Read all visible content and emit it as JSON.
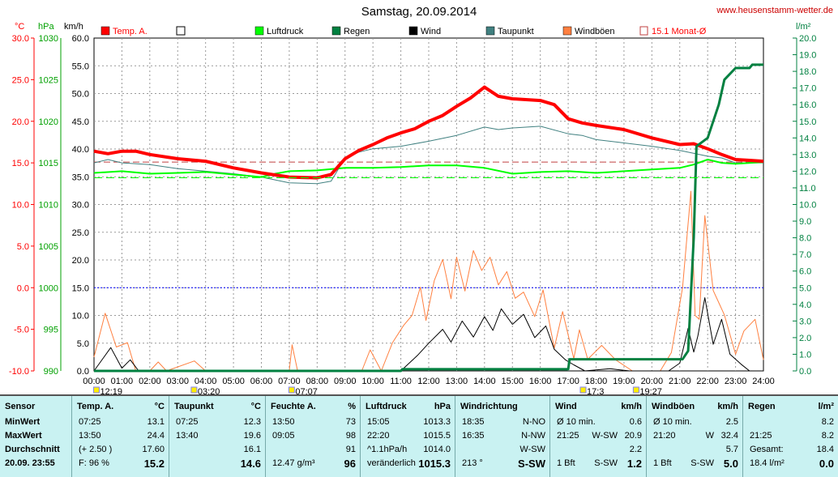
{
  "title": "Samstag, 20.09.2014",
  "site": "www.heusenstamm-wetter.de",
  "units": {
    "temp": "°C",
    "press": "hPa",
    "speed": "km/h",
    "rain": "l/m²"
  },
  "legend": [
    {
      "label": "Temp. A.",
      "color": "#ff0000",
      "style": "fill"
    },
    {
      "label": "",
      "color": "#ffffff",
      "style": "box"
    },
    {
      "label": "Luftdruck",
      "color": "#00ff00",
      "style": "fill"
    },
    {
      "label": "Regen",
      "color": "#008040",
      "style": "fill"
    },
    {
      "label": "Wind",
      "color": "#000000",
      "style": "fill"
    },
    {
      "label": "Taupunkt",
      "color": "#408080",
      "style": "fill"
    },
    {
      "label": "Windböen",
      "color": "#ff8040",
      "style": "fill"
    },
    {
      "label": "15.1 Monat-Ø",
      "color": "#c04040",
      "style": "open"
    }
  ],
  "chart_data": {
    "type": "line",
    "x_ticks": [
      "00:00",
      "01:00",
      "02:00",
      "03:00",
      "04:00",
      "05:00",
      "06:00",
      "07:00",
      "08:00",
      "09:00",
      "10:00",
      "11:00",
      "12:00",
      "13:00",
      "14:00",
      "15:00",
      "16:00",
      "17:00",
      "18:00",
      "19:00",
      "20:00",
      "21:00",
      "22:00",
      "23:00",
      "24:00"
    ],
    "temp_ticks": [
      "30.0",
      "25.0",
      "20.0",
      "15.0",
      "10.0",
      "5.0",
      "0.0",
      "-5.0",
      "-10.0"
    ],
    "press_ticks": [
      "1030",
      "1025",
      "1020",
      "1015",
      "1010",
      "1005",
      "1000",
      "995",
      "990"
    ],
    "speed_ticks": [
      "60.0",
      "55.0",
      "50.0",
      "45.0",
      "40.0",
      "35.0",
      "30.0",
      "25.0",
      "20.0",
      "15.0",
      "10.0",
      "5.0",
      "0.0"
    ],
    "rain_ticks": [
      "20.0",
      "19.0",
      "18.0",
      "17.0",
      "16.0",
      "15.0",
      "14.0",
      "13.0",
      "12.0",
      "11.0",
      "10.0",
      "9.0",
      "8.0",
      "7.0",
      "6.0",
      "5.0",
      "4.0",
      "3.0",
      "2.0",
      "1.0",
      "0.0"
    ],
    "ranges": {
      "temp": [
        -10,
        30
      ],
      "pressure": [
        990,
        1030
      ],
      "speed": [
        0,
        60
      ],
      "rain": [
        0,
        20
      ],
      "hours": [
        0,
        24
      ]
    },
    "sun_markers": [
      {
        "label": "12:19",
        "hour": 0.1
      },
      {
        "label": "03:20",
        "hour": 3.6
      },
      {
        "label": "07:07",
        "hour": 7.1
      },
      {
        "label": "17:3",
        "hour": 17.55
      },
      {
        "label": "19:27",
        "hour": 19.45
      }
    ],
    "month_avg_temp": 15.1,
    "series": [
      {
        "name": "Temp. A.",
        "color": "#ff0000",
        "width": 4,
        "axis": "temp",
        "points": [
          [
            0,
            16.4
          ],
          [
            0.5,
            16.1
          ],
          [
            1,
            16.4
          ],
          [
            1.5,
            16.4
          ],
          [
            2,
            16.0
          ],
          [
            3,
            15.5
          ],
          [
            4,
            15.2
          ],
          [
            5,
            14.4
          ],
          [
            6,
            13.8
          ],
          [
            7,
            13.3
          ],
          [
            8,
            13.2
          ],
          [
            8.5,
            13.6
          ],
          [
            9,
            15.5
          ],
          [
            9.5,
            16.5
          ],
          [
            10,
            17.2
          ],
          [
            10.5,
            18.0
          ],
          [
            11,
            18.6
          ],
          [
            11.5,
            19.1
          ],
          [
            12,
            20.0
          ],
          [
            12.5,
            20.7
          ],
          [
            13,
            21.8
          ],
          [
            13.5,
            22.8
          ],
          [
            14,
            24.1
          ],
          [
            14.5,
            23.0
          ],
          [
            15,
            22.7
          ],
          [
            16,
            22.5
          ],
          [
            16.5,
            22.0
          ],
          [
            17,
            20.3
          ],
          [
            17.5,
            19.8
          ],
          [
            18,
            19.5
          ],
          [
            19,
            19.0
          ],
          [
            20,
            18.0
          ],
          [
            21,
            17.2
          ],
          [
            21.5,
            17.3
          ],
          [
            22,
            16.7
          ],
          [
            22.5,
            16.0
          ],
          [
            23,
            15.4
          ],
          [
            23.5,
            15.3
          ],
          [
            24,
            15.2
          ]
        ]
      },
      {
        "name": "Taupunkt",
        "color": "#408080",
        "width": 1,
        "axis": "temp",
        "points": [
          [
            0,
            15.0
          ],
          [
            0.5,
            15.4
          ],
          [
            1,
            15.0
          ],
          [
            2,
            14.8
          ],
          [
            3,
            14.3
          ],
          [
            4,
            14.0
          ],
          [
            5,
            13.7
          ],
          [
            6,
            13.3
          ],
          [
            7,
            12.6
          ],
          [
            8,
            12.5
          ],
          [
            8.5,
            12.8
          ],
          [
            9,
            15.6
          ],
          [
            9.5,
            16.3
          ],
          [
            10,
            16.7
          ],
          [
            11,
            17.0
          ],
          [
            12,
            17.6
          ],
          [
            13,
            18.3
          ],
          [
            14,
            19.3
          ],
          [
            14.5,
            19.0
          ],
          [
            15,
            19.2
          ],
          [
            16,
            19.4
          ],
          [
            17,
            18.5
          ],
          [
            17.5,
            18.3
          ],
          [
            18,
            17.8
          ],
          [
            19,
            17.4
          ],
          [
            20,
            17.0
          ],
          [
            21,
            16.5
          ],
          [
            22,
            15.8
          ],
          [
            22.5,
            15.6
          ],
          [
            23,
            15.0
          ],
          [
            24,
            15.0
          ]
        ]
      },
      {
        "name": "Luftdruck",
        "color": "#00ff00",
        "width": 2,
        "axis": "pressure",
        "points": [
          [
            0,
            1013.8
          ],
          [
            1,
            1014.0
          ],
          [
            2,
            1013.7
          ],
          [
            3,
            1013.8
          ],
          [
            4,
            1013.9
          ],
          [
            5,
            1013.6
          ],
          [
            6,
            1013.3
          ],
          [
            6.5,
            1013.7
          ],
          [
            7,
            1014.0
          ],
          [
            8,
            1014.1
          ],
          [
            9,
            1014.4
          ],
          [
            10,
            1014.4
          ],
          [
            11,
            1014.5
          ],
          [
            12,
            1014.7
          ],
          [
            13,
            1014.7
          ],
          [
            14,
            1014.4
          ],
          [
            15,
            1013.7
          ],
          [
            16,
            1013.9
          ],
          [
            17,
            1014.0
          ],
          [
            18,
            1013.8
          ],
          [
            19,
            1014.0
          ],
          [
            20,
            1014.2
          ],
          [
            21,
            1014.4
          ],
          [
            21.5,
            1014.8
          ],
          [
            22,
            1015.4
          ],
          [
            22.5,
            1015.0
          ],
          [
            23,
            1014.9
          ],
          [
            24,
            1015.1
          ]
        ]
      },
      {
        "name": "Regen",
        "color": "#008040",
        "width": 3,
        "axis": "rain",
        "points": [
          [
            0,
            0
          ],
          [
            11,
            0
          ],
          [
            11.05,
            0.1
          ],
          [
            17,
            0.1
          ],
          [
            17.05,
            0.7
          ],
          [
            21.1,
            0.7
          ],
          [
            21.3,
            1.2
          ],
          [
            21.5,
            8.0
          ],
          [
            21.6,
            13.5
          ],
          [
            22,
            14.0
          ],
          [
            22.4,
            16.0
          ],
          [
            22.6,
            17.5
          ],
          [
            23,
            18.2
          ],
          [
            23.5,
            18.2
          ],
          [
            23.6,
            18.4
          ],
          [
            24,
            18.4
          ]
        ]
      },
      {
        "name": "Wind",
        "color": "#000000",
        "width": 1,
        "axis": "speed",
        "points": [
          [
            0,
            0
          ],
          [
            0.6,
            4.2
          ],
          [
            1.0,
            0.5
          ],
          [
            1.3,
            2.0
          ],
          [
            1.6,
            0
          ],
          [
            11.0,
            0
          ],
          [
            11.6,
            2.8
          ],
          [
            12.0,
            5.0
          ],
          [
            12.5,
            7.5
          ],
          [
            12.8,
            5.2
          ],
          [
            13.2,
            9.0
          ],
          [
            13.6,
            6.1
          ],
          [
            14.0,
            9.8
          ],
          [
            14.3,
            7.3
          ],
          [
            14.6,
            11.2
          ],
          [
            15.0,
            8.4
          ],
          [
            15.4,
            10.2
          ],
          [
            15.8,
            6.0
          ],
          [
            16.2,
            8.1
          ],
          [
            16.5,
            3.9
          ],
          [
            16.9,
            2.0
          ],
          [
            17.2,
            1.1
          ],
          [
            17.6,
            0
          ],
          [
            18.5,
            0.4
          ],
          [
            19.2,
            0
          ],
          [
            20.6,
            0
          ],
          [
            21.0,
            1.4
          ],
          [
            21.3,
            7.7
          ],
          [
            21.5,
            3.4
          ],
          [
            21.65,
            6.3
          ],
          [
            21.9,
            13.2
          ],
          [
            22.2,
            4.8
          ],
          [
            22.5,
            9.3
          ],
          [
            22.8,
            3.0
          ],
          [
            23.2,
            1.2
          ],
          [
            23.5,
            0
          ],
          [
            24,
            0
          ]
        ]
      },
      {
        "name": "Windböen",
        "color": "#ff8040",
        "width": 1,
        "axis": "speed",
        "points": [
          [
            0,
            2.5
          ],
          [
            0.4,
            10.4
          ],
          [
            0.8,
            4.3
          ],
          [
            1.2,
            5.1
          ],
          [
            1.5,
            0
          ],
          [
            2.0,
            0
          ],
          [
            2.3,
            1.6
          ],
          [
            2.6,
            0
          ],
          [
            3.6,
            1.8
          ],
          [
            4.0,
            0
          ],
          [
            7.0,
            0
          ],
          [
            7.1,
            4.7
          ],
          [
            7.3,
            0
          ],
          [
            9.6,
            0
          ],
          [
            9.9,
            3.8
          ],
          [
            10.3,
            0
          ],
          [
            10.7,
            5.1
          ],
          [
            11.1,
            8.2
          ],
          [
            11.4,
            10.0
          ],
          [
            11.7,
            15.1
          ],
          [
            11.9,
            9.1
          ],
          [
            12.2,
            16.3
          ],
          [
            12.5,
            20.1
          ],
          [
            12.8,
            13.0
          ],
          [
            13.0,
            20.5
          ],
          [
            13.3,
            14.4
          ],
          [
            13.6,
            21.7
          ],
          [
            13.9,
            18.1
          ],
          [
            14.2,
            20.5
          ],
          [
            14.5,
            15.5
          ],
          [
            14.8,
            17.9
          ],
          [
            15.1,
            13.1
          ],
          [
            15.4,
            14.2
          ],
          [
            15.8,
            9.8
          ],
          [
            16.1,
            14.6
          ],
          [
            16.5,
            4.1
          ],
          [
            16.8,
            10.7
          ],
          [
            17.2,
            2.2
          ],
          [
            17.4,
            7.4
          ],
          [
            17.7,
            2.1
          ],
          [
            18.2,
            4.6
          ],
          [
            18.7,
            2.0
          ],
          [
            19.3,
            0
          ],
          [
            20.3,
            0
          ],
          [
            20.7,
            3.3
          ],
          [
            21.1,
            15.0
          ],
          [
            21.4,
            32.4
          ],
          [
            21.55,
            10.0
          ],
          [
            21.7,
            9.3
          ],
          [
            21.9,
            28.0
          ],
          [
            22.2,
            14.5
          ],
          [
            22.6,
            10.1
          ],
          [
            23.0,
            3.0
          ],
          [
            23.3,
            7.2
          ],
          [
            23.7,
            9.3
          ],
          [
            24,
            2.0
          ]
        ]
      }
    ]
  },
  "table": {
    "columns": [
      {
        "header": "Sensor",
        "unit": "",
        "rows": [
          [
            "MinWert",
            "",
            ""
          ],
          [
            "MaxWert",
            "",
            ""
          ],
          [
            "Durchschnitt",
            "",
            ""
          ],
          [
            "20.09.  23:55",
            "",
            ""
          ]
        ]
      },
      {
        "header": "Temp. A.",
        "unit": "°C",
        "rows": [
          [
            "07:25",
            "",
            "13.1"
          ],
          [
            "13:50",
            "",
            "24.4"
          ],
          [
            "(+ 2.50 )",
            "",
            "17.60"
          ],
          [
            "F: 96 %",
            "",
            "15.2"
          ]
        ]
      },
      {
        "header": "Taupunkt",
        "unit": "°C",
        "rows": [
          [
            "07:25",
            "",
            "12.3"
          ],
          [
            "13:40",
            "",
            "19.6"
          ],
          [
            "",
            "",
            "16.1"
          ],
          [
            "",
            "",
            "14.6"
          ]
        ]
      },
      {
        "header": "Feuchte A.",
        "unit": "%",
        "rows": [
          [
            "13:50",
            "",
            "73"
          ],
          [
            "09:05",
            "",
            "98"
          ],
          [
            "",
            "",
            "91"
          ],
          [
            "12.47 g/m³",
            "",
            "96"
          ]
        ]
      },
      {
        "header": "Luftdruck",
        "unit": "hPa",
        "rows": [
          [
            "15:05",
            "",
            "1013.3"
          ],
          [
            "22:20",
            "",
            "1015.5"
          ],
          [
            "^1.1hPa/h",
            "",
            "1014.0"
          ],
          [
            "veränderlich",
            "",
            "1015.3"
          ]
        ]
      },
      {
        "header": "Windrichtung",
        "unit": "",
        "rows": [
          [
            "18:35",
            "",
            "N-NO"
          ],
          [
            "16:35",
            "",
            "N-NW"
          ],
          [
            "",
            "",
            "W-SW"
          ],
          [
            "213 °",
            "",
            "S-SW"
          ]
        ]
      },
      {
        "header": "Wind",
        "unit": "km/h",
        "rows": [
          [
            "Ø 10 min.",
            "",
            "0.6"
          ],
          [
            "21:25",
            "W-SW",
            "20.9"
          ],
          [
            "",
            "",
            "2.2"
          ],
          [
            "1 Bft",
            "S-SW",
            "1.2"
          ]
        ]
      },
      {
        "header": "Windböen",
        "unit": "km/h",
        "rows": [
          [
            "Ø 10 min.",
            "",
            "2.5"
          ],
          [
            "21:20",
            "W",
            "32.4"
          ],
          [
            "",
            "",
            "5.7"
          ],
          [
            "1 Bft",
            "S-SW",
            "5.0"
          ]
        ]
      },
      {
        "header": "Regen",
        "unit": "l/m²",
        "rows": [
          [
            "",
            "",
            "8.2"
          ],
          [
            "21:25",
            "",
            "8.2"
          ],
          [
            "Gesamt:",
            "",
            "18.4"
          ],
          [
            "18.4 l/m²",
            "",
            "0.0"
          ]
        ]
      }
    ]
  }
}
